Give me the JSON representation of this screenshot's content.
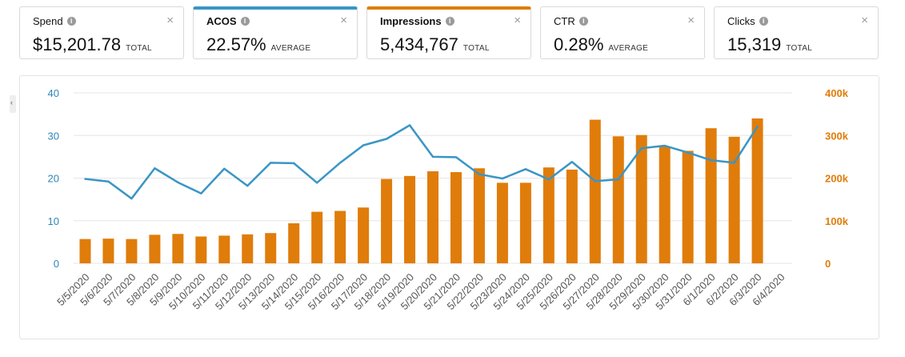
{
  "metrics": [
    {
      "label": "Spend",
      "value": "$15,201.78",
      "suffix": "TOTAL",
      "selected": null
    },
    {
      "label": "ACOS",
      "value": "22.57%",
      "suffix": "AVERAGE",
      "selected": "blue"
    },
    {
      "label": "Impressions",
      "value": "5,434,767",
      "suffix": "TOTAL",
      "selected": "orange"
    },
    {
      "label": "CTR",
      "value": "0.28%",
      "suffix": "AVERAGE",
      "selected": null
    },
    {
      "label": "Clicks",
      "value": "15,319",
      "suffix": "TOTAL",
      "selected": null
    }
  ],
  "icons": {
    "info": "info-icon",
    "close": "close-icon",
    "close_glyph": "×",
    "info_glyph": "i"
  },
  "edge_tab_glyph": "‹",
  "colors": {
    "acos_line": "#3a95c6",
    "impressions_bar": "#e07c0a",
    "left_axis": "#2f87b6",
    "right_axis": "#e07c0a",
    "grid": "#e6e6e6"
  },
  "chart_data": {
    "type": "bar+line",
    "categories": [
      "5/5/2020",
      "5/6/2020",
      "5/7/2020",
      "5/8/2020",
      "5/9/2020",
      "5/10/2020",
      "5/11/2020",
      "5/12/2020",
      "5/13/2020",
      "5/14/2020",
      "5/15/2020",
      "5/16/2020",
      "5/17/2020",
      "5/18/2020",
      "5/19/2020",
      "5/20/2020",
      "5/21/2020",
      "5/22/2020",
      "5/23/2020",
      "5/24/2020",
      "5/25/2020",
      "5/26/2020",
      "5/27/2020",
      "5/28/2020",
      "5/29/2020",
      "5/30/2020",
      "5/31/2020",
      "6/1/2020",
      "6/2/2020",
      "6/3/2020",
      "6/4/2020"
    ],
    "series": [
      {
        "name": "Impressions",
        "kind": "bar",
        "axis": "right",
        "values": [
          57000,
          58000,
          57000,
          67000,
          69000,
          63000,
          65000,
          68000,
          71000,
          94000,
          121000,
          123000,
          131000,
          198000,
          205000,
          216000,
          214000,
          223000,
          189000,
          189000,
          225000,
          220000,
          337000,
          298000,
          301000,
          274000,
          264000,
          317000,
          297000,
          340000,
          null
        ]
      },
      {
        "name": "ACOS",
        "kind": "line",
        "axis": "left",
        "values": [
          19.8,
          19.2,
          15.2,
          22.3,
          19.0,
          16.4,
          22.2,
          18.2,
          23.6,
          23.5,
          18.9,
          23.6,
          27.7,
          29.2,
          32.4,
          25.0,
          24.9,
          20.9,
          19.9,
          22.1,
          19.7,
          23.8,
          19.3,
          19.7,
          27.0,
          27.6,
          26.0,
          24.2,
          23.6,
          32.1,
          null
        ]
      }
    ],
    "left_axis": {
      "ticks": [
        "0",
        "10",
        "20",
        "30",
        "40"
      ],
      "range": [
        0,
        40
      ]
    },
    "right_axis": {
      "ticks": [
        "0",
        "100k",
        "200k",
        "300k",
        "400k"
      ],
      "range": [
        0,
        400000
      ]
    },
    "grid": true
  }
}
